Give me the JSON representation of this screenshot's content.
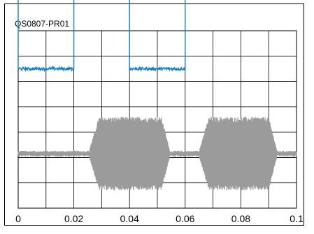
{
  "chart_data": {
    "type": "line",
    "title": "QS0807-PR01",
    "xlabel": "",
    "ylabel": "",
    "xlim": [
      0,
      0.1
    ],
    "x_ticks": [
      "0",
      "0.02",
      "0.04",
      "0.06",
      "0.08",
      "0.1"
    ],
    "grid": true,
    "legend": "none",
    "y_divisions": 7,
    "series": [
      {
        "color": "#1a7fc8",
        "kind": "square-wave",
        "levels": {
          "low": 5.5,
          "high": 10.3
        },
        "transitions": [
          {
            "x": 0.0,
            "state": "low"
          },
          {
            "x": 0.02,
            "state": "high"
          },
          {
            "x": 0.04,
            "state": "low"
          },
          {
            "x": 0.06,
            "state": "high"
          }
        ],
        "initial_spike": {
          "x": 0.0003,
          "value": 10.3
        }
      },
      {
        "color": "#9b9b9b",
        "kind": "burst-envelope",
        "baseline": 2.15,
        "idle_amplitude": 0.12,
        "burst_amplitude": 1.45,
        "bursts": [
          {
            "start": 0.0255,
            "peak_start": 0.029,
            "peak_end": 0.0515,
            "end": 0.0545
          },
          {
            "start": 0.065,
            "peak_start": 0.0685,
            "peak_end": 0.09,
            "end": 0.093
          }
        ]
      }
    ]
  }
}
